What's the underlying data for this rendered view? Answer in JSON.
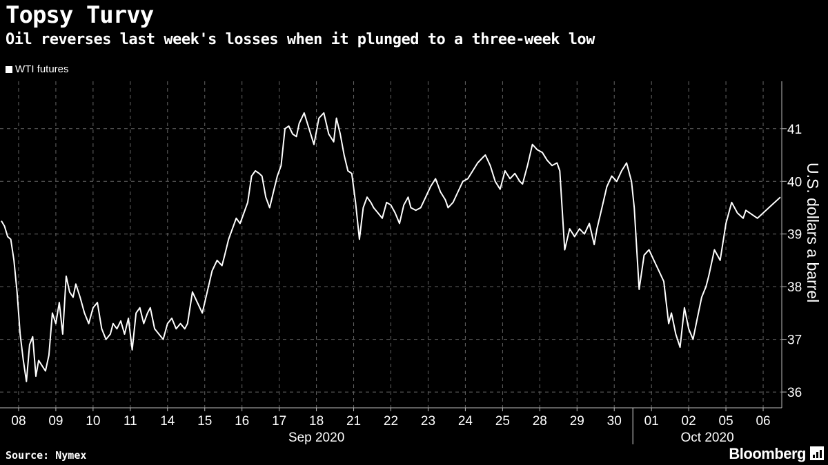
{
  "header": {
    "title": "Topsy Turvy",
    "subtitle": "Oil reverses last week's losses when it plunged to a three-week low"
  },
  "footer": {
    "source": "Source: Nymex",
    "brand": "Bloomberg"
  },
  "colors": {
    "background": "#000000",
    "line": "#ffffff",
    "grid": "#666666"
  },
  "chart_data": {
    "type": "line",
    "title": "Topsy Turvy",
    "subtitle": "Oil reverses last week's losses when it plunged to a three-week low",
    "xlabel": "",
    "ylabel": "U.S. dollars a barrel",
    "ylim": [
      35.7,
      41.9
    ],
    "y_ticks": [
      36,
      37,
      38,
      39,
      40,
      41
    ],
    "y_axis_side": "right",
    "grid": true,
    "legend": "top-left",
    "x_tick_labels": [
      "08",
      "09",
      "10",
      "11",
      "14",
      "15",
      "16",
      "17",
      "18",
      "21",
      "22",
      "23",
      "24",
      "25",
      "28",
      "29",
      "30",
      "01",
      "02",
      "05",
      "06"
    ],
    "x_group_labels": [
      {
        "label": "Sep 2020",
        "from": "08",
        "to": "30"
      },
      {
        "label": "Oct 2020",
        "from": "01",
        "to": "06"
      }
    ],
    "series": [
      {
        "name": "WTI futures",
        "points": [
          [
            "08",
            39.25
          ],
          [
            "08",
            39.15
          ],
          [
            "08",
            38.95
          ],
          [
            "08",
            38.9
          ],
          [
            "08",
            38.5
          ],
          [
            "08",
            37.9
          ],
          [
            "08",
            37.1
          ],
          [
            "08",
            36.6
          ],
          [
            "08",
            36.2
          ],
          [
            "08",
            36.9
          ],
          [
            "08",
            37.05
          ],
          [
            "08",
            36.3
          ],
          [
            "09",
            36.6
          ],
          [
            "09",
            36.5
          ],
          [
            "09",
            36.4
          ],
          [
            "09",
            36.7
          ],
          [
            "09",
            37.5
          ],
          [
            "09",
            37.3
          ],
          [
            "09",
            37.7
          ],
          [
            "09",
            37.1
          ],
          [
            "09",
            38.2
          ],
          [
            "09",
            37.9
          ],
          [
            "09",
            37.8
          ],
          [
            "10",
            38.05
          ],
          [
            "10",
            37.8
          ],
          [
            "10",
            37.5
          ],
          [
            "10",
            37.3
          ],
          [
            "10",
            37.6
          ],
          [
            "10",
            37.7
          ],
          [
            "10",
            37.2
          ],
          [
            "10",
            37.0
          ],
          [
            "10",
            37.1
          ],
          [
            "11",
            37.3
          ],
          [
            "11",
            37.2
          ],
          [
            "11",
            37.35
          ],
          [
            "11",
            37.1
          ],
          [
            "11",
            37.4
          ],
          [
            "11",
            36.8
          ],
          [
            "11",
            37.5
          ],
          [
            "11",
            37.6
          ],
          [
            "11",
            37.3
          ],
          [
            "11",
            37.5
          ],
          [
            "14",
            37.6
          ],
          [
            "14",
            37.2
          ],
          [
            "14",
            37.1
          ],
          [
            "14",
            37.0
          ],
          [
            "14",
            37.3
          ],
          [
            "14",
            37.4
          ],
          [
            "14",
            37.2
          ],
          [
            "14",
            37.3
          ],
          [
            "14",
            37.2
          ],
          [
            "15",
            37.3
          ],
          [
            "15",
            37.9
          ],
          [
            "15",
            37.7
          ],
          [
            "15",
            37.5
          ],
          [
            "15",
            37.9
          ],
          [
            "15",
            38.3
          ],
          [
            "15",
            38.5
          ],
          [
            "15",
            38.4
          ],
          [
            "16",
            38.6
          ],
          [
            "16",
            38.9
          ],
          [
            "16",
            39.1
          ],
          [
            "16",
            39.3
          ],
          [
            "16",
            39.2
          ],
          [
            "16",
            39.4
          ],
          [
            "16",
            39.6
          ],
          [
            "16",
            40.1
          ],
          [
            "16",
            40.2
          ],
          [
            "16",
            40.15
          ],
          [
            "17",
            40.1
          ],
          [
            "17",
            39.7
          ],
          [
            "17",
            39.5
          ],
          [
            "17",
            39.8
          ],
          [
            "17",
            40.1
          ],
          [
            "17",
            40.3
          ],
          [
            "17",
            41.0
          ],
          [
            "17",
            41.05
          ],
          [
            "17",
            40.9
          ],
          [
            "17",
            40.85
          ],
          [
            "18",
            41.1
          ],
          [
            "18",
            41.3
          ],
          [
            "18",
            41.0
          ],
          [
            "18",
            40.7
          ],
          [
            "18",
            41.2
          ],
          [
            "18",
            41.3
          ],
          [
            "18",
            40.9
          ],
          [
            "18",
            40.75
          ],
          [
            "21",
            41.2
          ],
          [
            "21",
            40.9
          ],
          [
            "21",
            40.5
          ],
          [
            "21",
            40.2
          ],
          [
            "21",
            40.15
          ],
          [
            "21",
            39.6
          ],
          [
            "21",
            38.9
          ],
          [
            "21",
            39.5
          ],
          [
            "21",
            39.7
          ],
          [
            "21",
            39.6
          ],
          [
            "22",
            39.5
          ],
          [
            "22",
            39.4
          ],
          [
            "22",
            39.3
          ],
          [
            "22",
            39.6
          ],
          [
            "22",
            39.55
          ],
          [
            "22",
            39.4
          ],
          [
            "22",
            39.2
          ],
          [
            "22",
            39.55
          ],
          [
            "22",
            39.7
          ],
          [
            "23",
            39.5
          ],
          [
            "23",
            39.45
          ],
          [
            "23",
            39.5
          ],
          [
            "23",
            39.7
          ],
          [
            "23",
            39.9
          ],
          [
            "23",
            40.05
          ],
          [
            "23",
            39.8
          ],
          [
            "23",
            39.65
          ],
          [
            "24",
            39.5
          ],
          [
            "24",
            39.6
          ],
          [
            "24",
            39.8
          ],
          [
            "24",
            40.0
          ],
          [
            "24",
            40.05
          ],
          [
            "24",
            40.2
          ],
          [
            "24",
            40.35
          ],
          [
            "24",
            40.45
          ],
          [
            "25",
            40.5
          ],
          [
            "25",
            40.3
          ],
          [
            "25",
            40.0
          ],
          [
            "25",
            39.85
          ],
          [
            "25",
            40.2
          ],
          [
            "25",
            40.05
          ],
          [
            "25",
            40.15
          ],
          [
            "25",
            40.0
          ],
          [
            "28",
            39.95
          ],
          [
            "28",
            40.3
          ],
          [
            "28",
            40.7
          ],
          [
            "28",
            40.6
          ],
          [
            "28",
            40.55
          ],
          [
            "28",
            40.4
          ],
          [
            "28",
            40.3
          ],
          [
            "28",
            40.35
          ],
          [
            "29",
            40.2
          ],
          [
            "29",
            38.7
          ],
          [
            "29",
            39.1
          ],
          [
            "29",
            38.95
          ],
          [
            "29",
            39.1
          ],
          [
            "29",
            39.0
          ],
          [
            "29",
            39.2
          ],
          [
            "29",
            38.8
          ],
          [
            "30",
            39.1
          ],
          [
            "30",
            39.5
          ],
          [
            "30",
            39.9
          ],
          [
            "30",
            40.1
          ],
          [
            "30",
            40.0
          ],
          [
            "30",
            40.2
          ],
          [
            "30",
            40.35
          ],
          [
            "30",
            40.0
          ],
          [
            "01",
            39.5
          ],
          [
            "01",
            37.95
          ],
          [
            "01",
            38.6
          ],
          [
            "01",
            38.7
          ],
          [
            "01",
            38.5
          ],
          [
            "01",
            38.3
          ],
          [
            "01",
            38.1
          ],
          [
            "01",
            37.3
          ],
          [
            "02",
            37.5
          ],
          [
            "02",
            37.1
          ],
          [
            "02",
            36.85
          ],
          [
            "02",
            37.6
          ],
          [
            "02",
            37.2
          ],
          [
            "02",
            37.0
          ],
          [
            "02",
            37.4
          ],
          [
            "02",
            37.8
          ],
          [
            "02",
            38.0
          ],
          [
            "05",
            38.2
          ],
          [
            "05",
            38.7
          ],
          [
            "05",
            38.5
          ],
          [
            "05",
            39.2
          ],
          [
            "05",
            39.6
          ],
          [
            "05",
            39.4
          ],
          [
            "05",
            39.3
          ],
          [
            "06",
            39.45
          ],
          [
            "06",
            39.3
          ],
          [
            "06",
            39.5
          ],
          [
            "06",
            39.7
          ]
        ]
      }
    ]
  }
}
